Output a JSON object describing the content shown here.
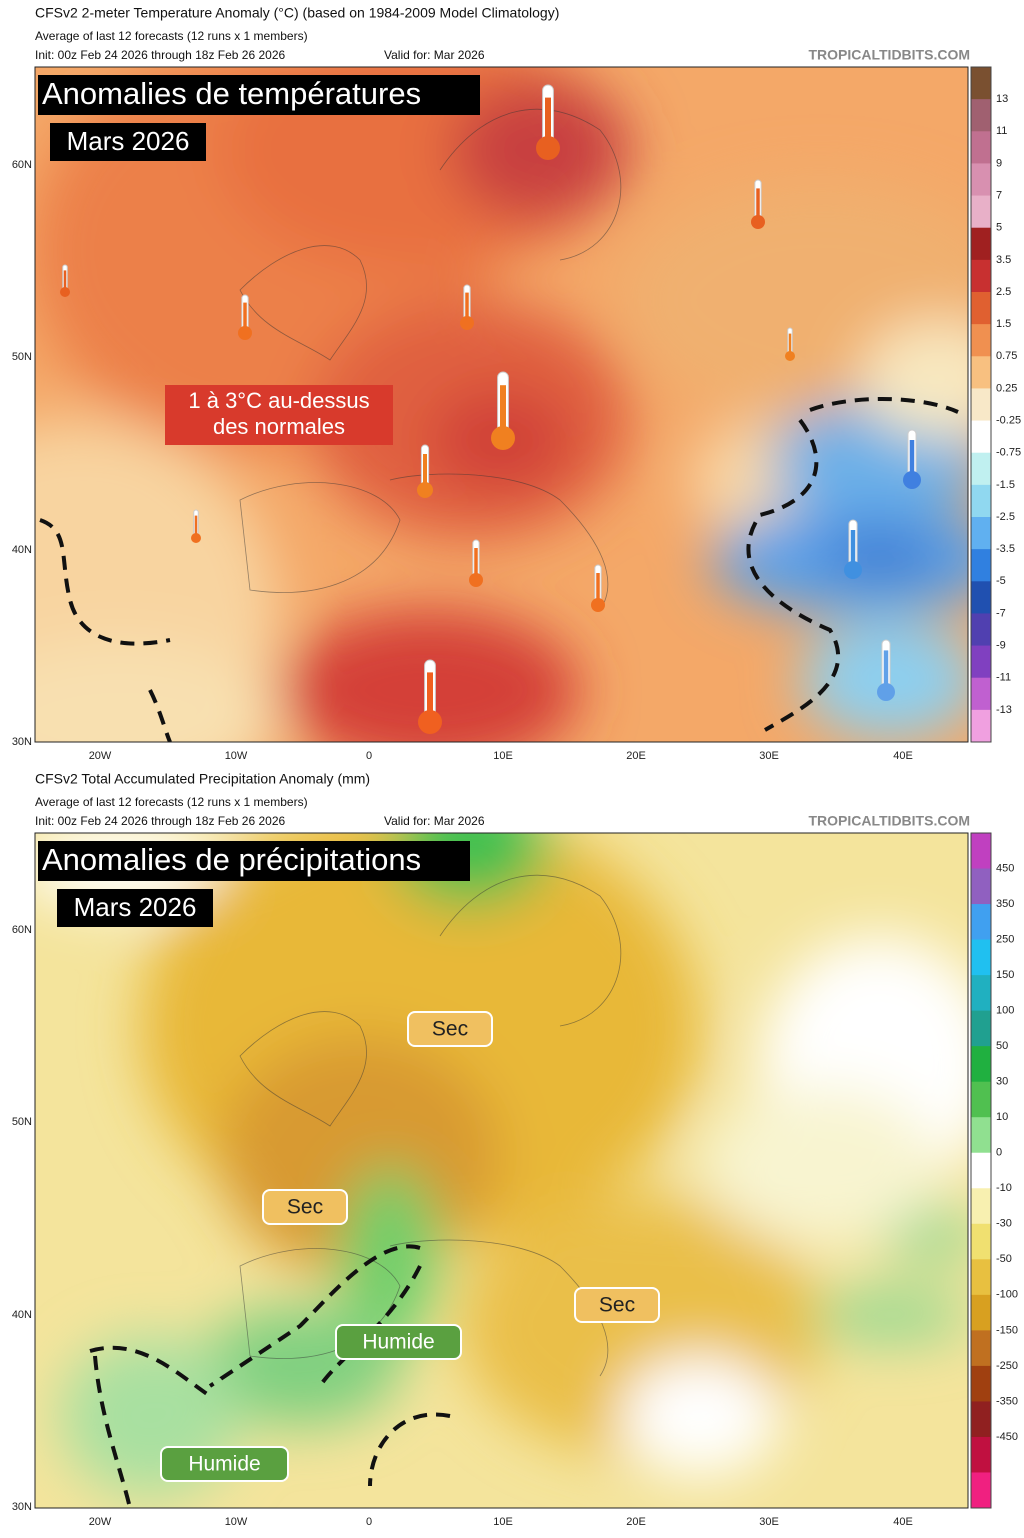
{
  "panels": [
    {
      "header": {
        "title": "CFSv2 2-meter Temperature Anomaly (°C) (based on 1984-2009 Model Climatology)",
        "subtitle": "Average of last 12 forecasts (12 runs x 1 members)",
        "init": "Init: 00z Feb 24 2026 through 18z Feb 26 2026",
        "valid": "Valid for: Mar 2026",
        "site": "TROPICALTIDBITS.COM"
      },
      "overlay_title": "Anomalies de températures",
      "overlay_date": "Mars 2026",
      "annotations": [
        "1 à 3°C au-dessus",
        "des normales"
      ],
      "colorbar": [
        "13",
        "11",
        "9",
        "7",
        "5",
        "3.5",
        "2.5",
        "1.5",
        "0.75",
        "0.25",
        "-0.25",
        "-0.75",
        "-1.5",
        "-2.5",
        "-3.5",
        "-5",
        "-7",
        "-9",
        "-11",
        "-13"
      ],
      "lat_labels": [
        "60N",
        "50N",
        "40N",
        "30N"
      ],
      "lon_labels": [
        "20W",
        "10W",
        "0",
        "10E",
        "20E",
        "30E",
        "40E"
      ]
    },
    {
      "header": {
        "title": "CFSv2 Total Accumulated Precipitation Anomaly (mm)",
        "subtitle": "Average of last 12 forecasts (12 runs x 1 members)",
        "init": "Init: 00z Feb 24 2026 through 18z Feb 26 2026",
        "valid": "Valid for: Mar 2026",
        "site": "TROPICALTIDBITS.COM"
      },
      "overlay_title": "Anomalies de précipitations",
      "overlay_date": "Mars 2026",
      "annotations": [
        "Sec",
        "Sec",
        "Sec",
        "Humide",
        "Humide"
      ],
      "colorbar": [
        "450",
        "350",
        "250",
        "150",
        "100",
        "50",
        "30",
        "10",
        "0",
        "-10",
        "-30",
        "-50",
        "-100",
        "-150",
        "-250",
        "-350",
        "-450"
      ],
      "lat_labels": [
        "60N",
        "50N",
        "40N",
        "30N"
      ],
      "lon_labels": [
        "20W",
        "10W",
        "0",
        "10E",
        "20E",
        "30E",
        "40E"
      ]
    }
  ]
}
